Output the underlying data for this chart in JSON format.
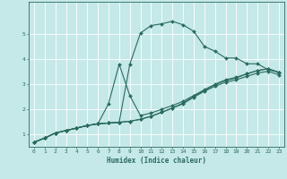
{
  "xlabel": "Humidex (Indice chaleur)",
  "background_color": "#c5e8e8",
  "grid_color": "#ffffff",
  "line_color": "#2a6b5e",
  "xlim": [
    -0.5,
    23.5
  ],
  "ylim": [
    0.5,
    6.3
  ],
  "xticks": [
    0,
    1,
    2,
    3,
    4,
    5,
    6,
    7,
    8,
    9,
    10,
    11,
    12,
    13,
    14,
    15,
    16,
    17,
    18,
    19,
    20,
    21,
    22,
    23
  ],
  "yticks": [
    1,
    2,
    3,
    4,
    5
  ],
  "curve1_x": [
    0,
    1,
    2,
    3,
    4,
    5,
    6,
    7,
    8,
    9,
    10,
    11,
    12,
    13,
    14,
    15,
    16,
    17,
    18,
    19,
    20,
    21,
    22,
    23
  ],
  "curve1_y": [
    0.68,
    0.85,
    1.05,
    1.15,
    1.25,
    1.35,
    1.42,
    1.45,
    1.48,
    3.8,
    5.05,
    5.35,
    5.42,
    5.52,
    5.38,
    5.12,
    4.52,
    4.32,
    4.05,
    4.05,
    3.82,
    3.82,
    3.58,
    3.48
  ],
  "curve2_x": [
    0,
    1,
    2,
    3,
    4,
    5,
    6,
    7,
    8,
    9,
    10,
    11,
    12,
    13,
    14,
    15,
    16,
    17,
    18,
    19,
    20,
    21,
    22,
    23
  ],
  "curve2_y": [
    0.68,
    0.85,
    1.05,
    1.15,
    1.25,
    1.35,
    1.42,
    2.22,
    3.8,
    2.55,
    1.75,
    1.85,
    2.0,
    2.15,
    2.32,
    2.55,
    2.78,
    3.0,
    3.18,
    3.28,
    3.42,
    3.55,
    3.62,
    3.48
  ],
  "curve3_x": [
    0,
    1,
    2,
    3,
    4,
    5,
    6,
    7,
    8,
    9,
    10,
    11,
    12,
    13,
    14,
    15,
    16,
    17,
    18,
    19,
    20,
    21,
    22,
    23
  ],
  "curve3_y": [
    0.68,
    0.85,
    1.05,
    1.15,
    1.25,
    1.35,
    1.42,
    1.45,
    1.48,
    1.52,
    1.6,
    1.72,
    1.88,
    2.05,
    2.25,
    2.52,
    2.75,
    2.98,
    3.15,
    3.25,
    3.42,
    3.55,
    3.62,
    3.48
  ],
  "curve4_x": [
    0,
    1,
    2,
    3,
    4,
    5,
    6,
    7,
    8,
    9,
    10,
    11,
    12,
    13,
    14,
    15,
    16,
    17,
    18,
    19,
    20,
    21,
    22,
    23
  ],
  "curve4_y": [
    0.68,
    0.85,
    1.05,
    1.15,
    1.25,
    1.35,
    1.42,
    1.45,
    1.48,
    1.52,
    1.6,
    1.72,
    1.88,
    2.05,
    2.22,
    2.48,
    2.72,
    2.92,
    3.08,
    3.18,
    3.32,
    3.45,
    3.52,
    3.38
  ]
}
